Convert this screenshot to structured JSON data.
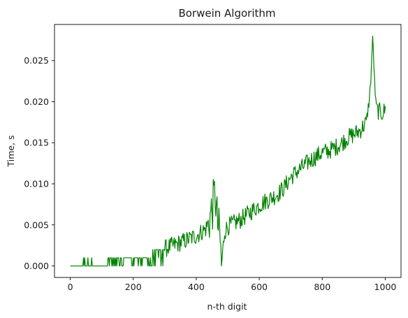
{
  "chart_data": {
    "type": "line",
    "title": "Borwein Algorithm",
    "xlabel": "n-th digit",
    "ylabel": "Time, s",
    "xlim": [
      -50,
      1050
    ],
    "ylim": [
      -0.0014,
      0.0294
    ],
    "xticks": [
      0,
      200,
      400,
      600,
      800,
      1000
    ],
    "xtick_labels": [
      "0",
      "200",
      "400",
      "600",
      "800",
      "1000"
    ],
    "yticks": [
      0.0,
      0.005,
      0.01,
      0.015,
      0.02,
      0.025
    ],
    "ytick_labels": [
      "0.000",
      "0.005",
      "0.010",
      "0.015",
      "0.020",
      "0.025"
    ],
    "grid": false,
    "line_color": "#008000",
    "series": [
      {
        "x": [
          0,
          40,
          80,
          120,
          160,
          200,
          240,
          280,
          320,
          360,
          400,
          430,
          440,
          450,
          455,
          460,
          465,
          470,
          475,
          480,
          490,
          500,
          520,
          540,
          560,
          580,
          600,
          620,
          640,
          660,
          680,
          700,
          720,
          740,
          760,
          780,
          800,
          820,
          840,
          860,
          880,
          900,
          920,
          940,
          950,
          955,
          958,
          960,
          963,
          966,
          970,
          975,
          980,
          990,
          1000
        ],
        "y": [
          0.0,
          0.0002,
          0.0004,
          0.0005,
          0.0006,
          0.0009,
          0.0013,
          0.0018,
          0.0024,
          0.003,
          0.0037,
          0.0045,
          0.0055,
          0.0068,
          0.0078,
          0.009,
          0.0062,
          0.0045,
          0.0038,
          0.0,
          0.0042,
          0.0048,
          0.0052,
          0.0056,
          0.0062,
          0.0068,
          0.0074,
          0.0079,
          0.0083,
          0.0088,
          0.0096,
          0.0108,
          0.0115,
          0.0121,
          0.0128,
          0.0133,
          0.0138,
          0.014,
          0.0144,
          0.0149,
          0.0156,
          0.016,
          0.0165,
          0.0175,
          0.0205,
          0.0232,
          0.0262,
          0.028,
          0.0255,
          0.0225,
          0.0198,
          0.019,
          0.0188,
          0.0186,
          0.019
        ]
      }
    ]
  }
}
